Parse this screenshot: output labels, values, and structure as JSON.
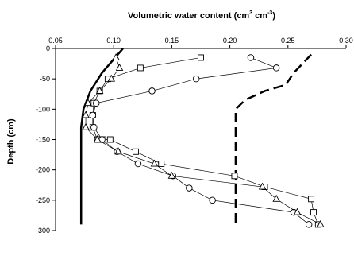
{
  "chart_data": {
    "type": "line",
    "title_main": "Volumetric water content (cm",
    "title_sup1": "3",
    "title_mid": " cm",
    "title_sup2": "-3",
    "title_end": ")",
    "ylabel": "Depth (cm)",
    "x_axis_position": "top",
    "xlim": [
      0.05,
      0.3
    ],
    "ylim": [
      -300,
      0
    ],
    "x_ticks": [
      "0.05",
      "0.10",
      "0.15",
      "0.20",
      "0.25",
      "0.30"
    ],
    "y_ticks": [
      "0",
      "-50",
      "-100",
      "-150",
      "-200",
      "-250",
      "-300"
    ],
    "grid": false,
    "legend": "none",
    "series": [
      {
        "marker": "square",
        "x": [
          0.175,
          0.123,
          0.095,
          0.088,
          0.083,
          0.082,
          0.082,
          0.086,
          0.091,
          0.097,
          0.119,
          0.141,
          0.204,
          0.23,
          0.27,
          0.272,
          0.276
        ],
        "y": [
          -15,
          -32,
          -50,
          -70,
          -90,
          -110,
          -130,
          -150,
          -150,
          -150,
          -170,
          -190,
          -210,
          -228,
          -248,
          -270,
          -290
        ]
      },
      {
        "marker": "circle",
        "x": [
          0.218,
          0.24,
          0.171,
          0.133,
          0.085,
          0.082,
          0.083,
          0.09,
          0.103,
          0.121,
          0.151,
          0.165,
          0.185,
          0.255,
          0.268
        ],
        "y": [
          -15,
          -32,
          -50,
          -70,
          -90,
          -110,
          -130,
          -150,
          -170,
          -190,
          -210,
          -230,
          -250,
          -270,
          -290
        ]
      },
      {
        "marker": "triangle",
        "x": [
          0.102,
          0.105,
          0.098,
          0.088,
          0.078,
          0.076,
          0.076,
          0.086,
          0.104,
          0.135,
          0.15,
          0.228,
          0.24,
          0.258,
          0.278
        ],
        "y": [
          -15,
          -32,
          -50,
          -70,
          -90,
          -110,
          -130,
          -150,
          -170,
          -190,
          -210,
          -228,
          -248,
          -270,
          -290
        ]
      }
    ],
    "thick_solid": {
      "x": [
        0.108,
        0.09,
        0.08,
        0.074,
        0.072,
        0.072,
        0.072
      ],
      "y": [
        0,
        -40,
        -70,
        -100,
        -130,
        -200,
        -290
      ]
    },
    "thick_dashed": {
      "x": [
        0.27,
        0.255,
        0.248,
        0.23,
        0.213,
        0.205,
        0.205,
        0.205
      ],
      "y": [
        -10,
        -40,
        -60,
        -70,
        -85,
        -100,
        -140,
        -290
      ]
    }
  }
}
